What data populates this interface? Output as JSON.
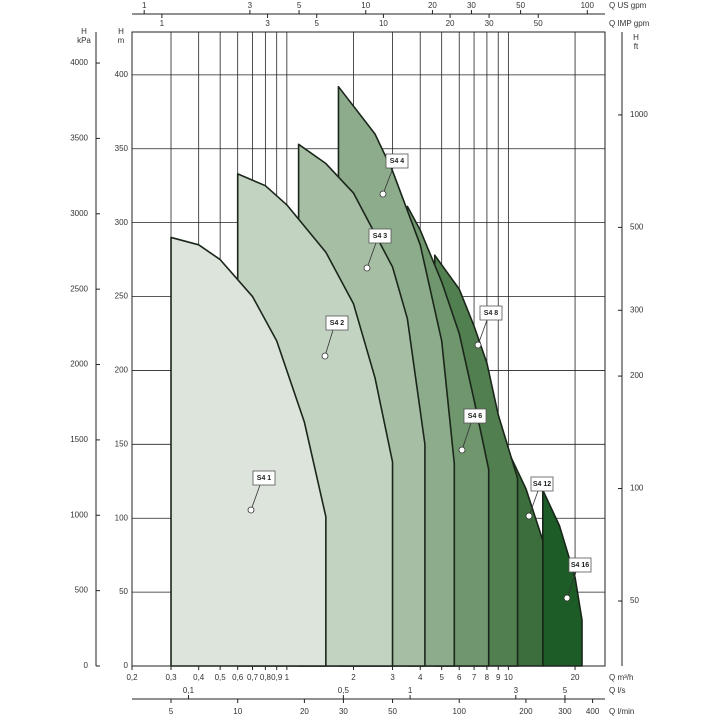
{
  "chart_data": {
    "type": "area",
    "xlabel": "Q m³/h",
    "log_x": true,
    "xlim": [
      0.2,
      27.3
    ],
    "xticks": [
      {
        "value": 0.2,
        "label": "0,2"
      },
      {
        "value": 0.3,
        "label": "0,3"
      },
      {
        "value": 0.4,
        "label": "0,4"
      },
      {
        "value": 0.5,
        "label": "0,5"
      },
      {
        "value": 0.6,
        "label": "0,6"
      },
      {
        "value": 0.7,
        "label": "0,7"
      },
      {
        "value": 0.8,
        "label": "0,8"
      },
      {
        "value": 0.9,
        "label": "0,9"
      },
      1,
      2,
      3,
      4,
      5,
      6,
      7,
      8,
      9,
      10,
      20
    ],
    "extra_x_axes": [
      {
        "side": "bottom",
        "label": "Q l/s",
        "xlim": [
          0.0556,
          7.58
        ],
        "xticks": [
          {
            "value": 0.1,
            "label": "0,1"
          },
          {
            "value": 0.5,
            "label": "0,5"
          },
          1,
          3,
          5
        ]
      },
      {
        "side": "bottom",
        "label": "Q l/min",
        "xlim": [
          3.333,
          455
        ],
        "xticks": [
          5,
          10,
          20,
          30,
          50,
          100,
          200,
          300,
          400
        ]
      },
      {
        "side": "top",
        "label": "Q US gpm",
        "xlim": [
          0.881,
          120.2
        ],
        "xticks": [
          1,
          3,
          5,
          10,
          20,
          30,
          50,
          100
        ]
      },
      {
        "side": "top",
        "label": "Q IMP gpm",
        "xlim": [
          0.733,
          100.1
        ],
        "xticks": [
          1,
          3,
          5,
          10,
          20,
          30,
          50
        ]
      }
    ],
    "ylabel": [
      "H",
      "m"
    ],
    "ylim": [
      0,
      429
    ],
    "yticks": [
      0,
      50,
      100,
      150,
      200,
      250,
      300,
      350,
      400
    ],
    "y3label": [
      "H",
      "kPa"
    ],
    "y3lim": [
      0,
      4206
    ],
    "y3ticks": [
      0,
      500,
      1000,
      1500,
      2000,
      2500,
      3000,
      3500,
      4000
    ],
    "y2label": [
      "H",
      "ft"
    ],
    "y2log": true,
    "y2lim": [
      33.5,
      1667
    ],
    "y2ticks": [
      50,
      100,
      200,
      300,
      500,
      1000
    ],
    "grid": true,
    "series": [
      {
        "name": "S4 16",
        "color": "#1d5c26",
        "x": [
          14.3,
          17,
          20,
          21.5
        ],
        "values": [
          119,
          95,
          60,
          31
        ]
      },
      {
        "name": "S4 12",
        "color": "#3b6e3c",
        "x": [
          10,
          12,
          14.3
        ],
        "values": [
          145,
          120,
          85
        ]
      },
      {
        "name": "S4 8",
        "color": "#527f50",
        "x": [
          4.65,
          6,
          7,
          8,
          9,
          11
        ],
        "values": [
          278,
          255,
          230,
          205,
          170,
          127
        ]
      },
      {
        "name": "S4 6",
        "color": "#6f966c",
        "x": [
          3.5,
          4,
          5,
          6,
          7,
          8.15
        ],
        "values": [
          311,
          295,
          260,
          225,
          180,
          133
        ]
      },
      {
        "name": "S4 4",
        "color": "#8dac8b",
        "x": [
          1.71,
          2.5,
          3,
          4,
          5,
          5.7
        ],
        "values": [
          392,
          360,
          335,
          285,
          220,
          137
        ]
      },
      {
        "name": "S4 3",
        "color": "#a6bea4",
        "x": [
          1.13,
          1.5,
          2,
          3,
          3.5,
          4.2
        ],
        "values": [
          353,
          340,
          320,
          270,
          235,
          150
        ]
      },
      {
        "name": "S4 2",
        "color": "#c3d3c1",
        "x": [
          0.6,
          0.8,
          1,
          1.5,
          2,
          2.5,
          3
        ],
        "values": [
          333,
          325,
          312,
          280,
          245,
          195,
          138
        ]
      },
      {
        "name": "S4 1",
        "color": "#dde4dc",
        "x": [
          0.3,
          0.4,
          0.5,
          0.7,
          0.9,
          1.2,
          1.5
        ],
        "values": [
          290,
          285,
          275,
          250,
          220,
          165,
          101
        ]
      }
    ]
  }
}
